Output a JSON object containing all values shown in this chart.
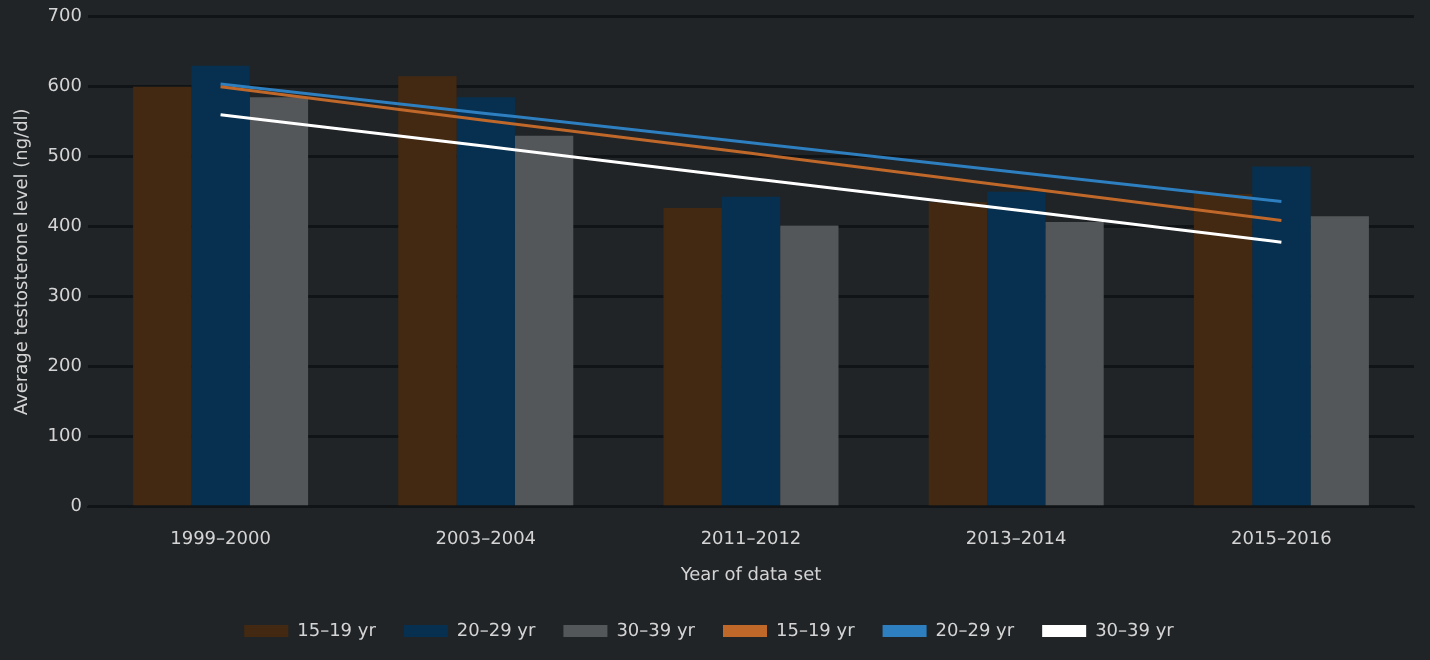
{
  "chart_data": {
    "type": "bar",
    "xlabel": "Year of data set",
    "ylabel": "Average testosterone level (ng/dl)",
    "categories": [
      "1999–2000",
      "2003–2004",
      "2011–2012",
      "2013–2014",
      "2015–2016"
    ],
    "series": [
      {
        "name": "15–19 yr",
        "color": "#432812",
        "values": [
          600,
          615,
          427,
          435,
          447
        ]
      },
      {
        "name": "20–29 yr",
        "color": "#073050",
        "values": [
          630,
          585,
          443,
          450,
          486
        ]
      },
      {
        "name": "30–39 yr",
        "color": "#545759",
        "values": [
          585,
          530,
          402,
          407,
          415
        ]
      },
      {
        "name": "15–19 yr",
        "type": "line",
        "color": "#c0682a",
        "values": [
          600,
          552,
          505,
          457,
          409
        ]
      },
      {
        "name": "20–29 yr",
        "type": "line",
        "color": "#2e7fc0",
        "values": [
          604,
          562,
          520,
          478,
          436
        ]
      },
      {
        "name": "30–39 yr",
        "type": "line",
        "color": "#ffffff",
        "values": [
          560,
          515,
          469,
          424,
          378
        ]
      }
    ],
    "ylim": [
      0,
      700
    ],
    "yticks": [
      0,
      100,
      200,
      300,
      400,
      500,
      600,
      700
    ],
    "grid": "y",
    "legend": "bottom",
    "marker": "none"
  }
}
